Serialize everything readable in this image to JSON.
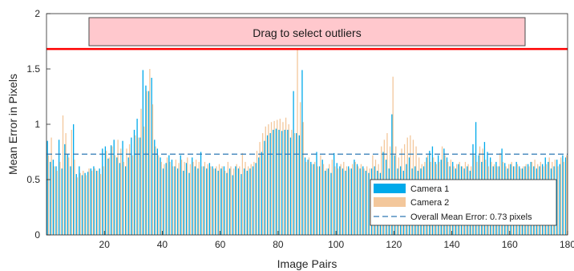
{
  "handle": {
    "label": "Drag to select outliers",
    "threshold": 1.68
  },
  "colors": {
    "camera1": "#00a9ea",
    "camera2": "#f3c79b",
    "mean_line": "#2e79b5",
    "threshold_line": "#ff0000",
    "handle_fill": "#ffc8cd"
  },
  "chart_data": {
    "type": "bar",
    "xlabel": "Image Pairs",
    "ylabel": "Mean Error in Pixels",
    "xlim": [
      0,
      180
    ],
    "ylim": [
      0,
      2
    ],
    "x_ticks": [
      "20",
      "40",
      "60",
      "80",
      "100",
      "120",
      "140",
      "160",
      "180"
    ],
    "y_ticks": [
      "0",
      "0.5",
      "1",
      "1.5",
      "2"
    ],
    "grid": false,
    "legend_position": "bottom-right",
    "mean_error": 0.73,
    "legend": {
      "camera1": "Camera 1",
      "camera2": "Camera 2",
      "mean": "Overall Mean Error: 0.73 pixels"
    },
    "series": [
      {
        "name": "Camera 1",
        "values": [
          0.85,
          0.66,
          0.68,
          0.62,
          0.86,
          0.6,
          0.82,
          0.73,
          0.62,
          1.0,
          0.55,
          0.62,
          0.54,
          0.56,
          0.57,
          0.6,
          0.62,
          0.58,
          0.6,
          0.78,
          0.8,
          0.69,
          0.81,
          0.86,
          0.7,
          0.65,
          0.85,
          0.62,
          0.7,
          0.88,
          0.95,
          1.05,
          0.88,
          1.49,
          1.35,
          1.3,
          1.42,
          0.86,
          0.78,
          0.7,
          0.6,
          0.65,
          0.72,
          0.68,
          0.62,
          0.6,
          0.72,
          0.58,
          0.65,
          0.56,
          0.7,
          0.62,
          0.6,
          0.75,
          0.62,
          0.6,
          0.65,
          0.62,
          0.6,
          0.58,
          0.6,
          0.62,
          0.56,
          0.6,
          0.54,
          0.62,
          0.6,
          0.55,
          0.6,
          0.58,
          0.6,
          0.62,
          0.65,
          0.7,
          0.75,
          0.85,
          0.9,
          0.92,
          0.95,
          0.96,
          0.95,
          0.94,
          0.95,
          0.95,
          0.88,
          1.3,
          0.92,
          0.9,
          1.49,
          0.7,
          0.68,
          0.66,
          0.64,
          0.75,
          0.62,
          0.68,
          0.58,
          0.6,
          0.56,
          0.74,
          0.65,
          0.62,
          0.6,
          0.58,
          0.62,
          0.6,
          0.68,
          0.64,
          0.6,
          0.62,
          0.58,
          0.56,
          0.6,
          0.62,
          0.58,
          0.56,
          0.75,
          0.68,
          0.6,
          1.09,
          0.72,
          0.6,
          0.62,
          0.58,
          0.64,
          0.7,
          0.6,
          0.62,
          0.58,
          0.6,
          0.62,
          0.7,
          0.76,
          0.8,
          0.66,
          0.72,
          0.68,
          0.78,
          0.7,
          0.62,
          0.66,
          0.6,
          0.64,
          0.62,
          0.6,
          0.62,
          0.58,
          0.82,
          1.02,
          0.72,
          0.66,
          0.84,
          0.75,
          0.7,
          0.62,
          0.66,
          0.62,
          0.78,
          0.65,
          0.6,
          0.64,
          0.62,
          0.66,
          0.62,
          0.6,
          0.62,
          0.64,
          0.66,
          0.62,
          0.6,
          0.62,
          0.64,
          0.7,
          0.66,
          0.6,
          0.62,
          0.68,
          0.64,
          0.72,
          0.7
        ]
      },
      {
        "name": "Camera 2",
        "values": [
          0.72,
          0.88,
          0.62,
          0.58,
          0.66,
          1.08,
          0.92,
          0.7,
          0.95,
          0.68,
          0.52,
          0.56,
          0.58,
          0.54,
          0.6,
          0.58,
          0.6,
          0.58,
          0.55,
          0.62,
          0.76,
          0.7,
          0.8,
          0.72,
          0.86,
          0.78,
          0.66,
          0.78,
          0.82,
          0.72,
          0.9,
          0.88,
          1.14,
          0.98,
          1.3,
          1.5,
          1.18,
          0.8,
          0.72,
          0.66,
          0.64,
          0.7,
          0.66,
          0.62,
          0.68,
          0.65,
          0.68,
          0.66,
          0.7,
          0.64,
          0.66,
          0.68,
          0.66,
          0.62,
          0.66,
          0.64,
          0.62,
          0.6,
          0.62,
          0.64,
          0.62,
          0.58,
          0.66,
          0.62,
          0.6,
          0.64,
          0.62,
          0.74,
          0.66,
          0.62,
          0.64,
          0.66,
          0.76,
          0.84,
          0.92,
          0.98,
          1.0,
          1.02,
          1.03,
          1.04,
          1.05,
          1.02,
          1.06,
          1.0,
          0.95,
          0.92,
          1.68,
          1.2,
          1.02,
          0.66,
          0.7,
          0.64,
          0.66,
          0.62,
          0.72,
          0.64,
          0.6,
          0.64,
          0.68,
          0.62,
          0.6,
          0.64,
          0.66,
          0.62,
          0.6,
          0.64,
          0.66,
          0.62,
          0.64,
          0.6,
          0.62,
          0.6,
          0.72,
          0.68,
          0.64,
          0.8,
          0.86,
          0.92,
          0.8,
          1.43,
          0.8,
          0.7,
          0.78,
          0.82,
          0.88,
          0.9,
          0.86,
          0.8,
          0.7,
          0.64,
          0.66,
          0.72,
          0.66,
          0.7,
          0.64,
          0.66,
          0.8,
          0.72,
          0.66,
          0.68,
          0.62,
          0.64,
          0.66,
          0.62,
          0.66,
          0.64,
          0.62,
          0.72,
          0.66,
          0.8,
          0.78,
          0.68,
          0.62,
          0.66,
          0.64,
          0.62,
          0.74,
          0.66,
          0.62,
          0.64,
          0.66,
          0.62,
          0.64,
          0.6,
          0.62,
          0.64,
          0.62,
          0.66,
          0.68,
          0.64,
          0.66,
          0.62,
          0.64,
          0.7,
          0.66,
          0.68,
          0.62,
          0.7,
          0.66,
          0.72
        ]
      }
    ]
  }
}
